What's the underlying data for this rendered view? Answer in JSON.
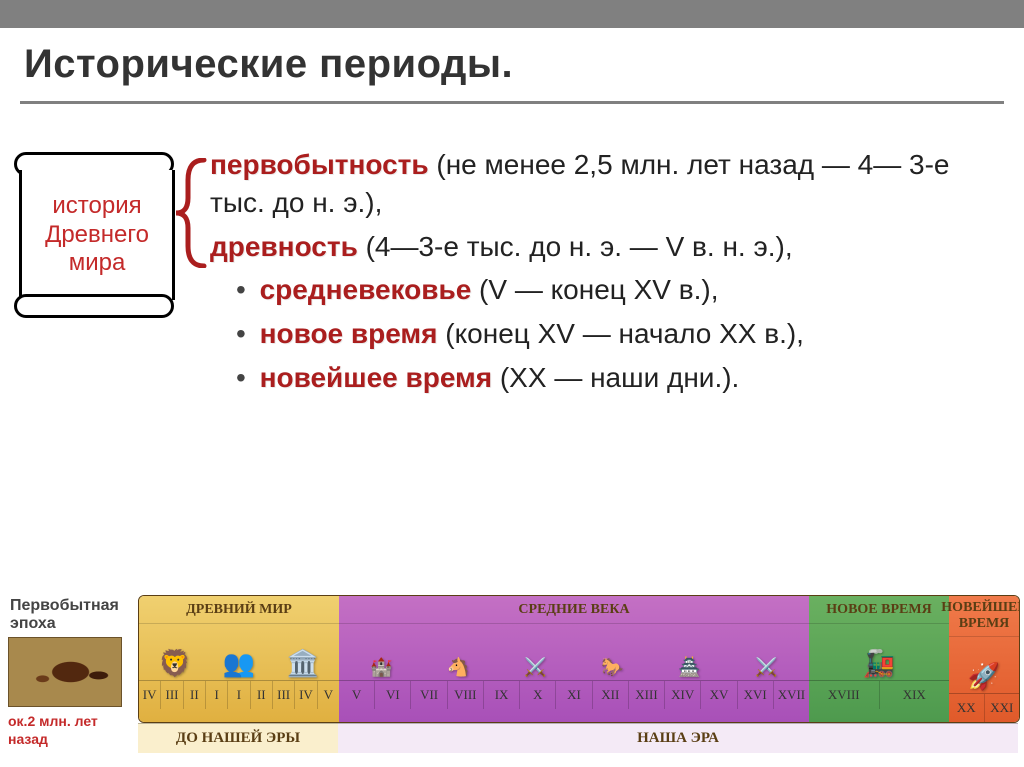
{
  "title": "Исторические периоды.",
  "scroll": {
    "line1": "история",
    "line2": "Древнего",
    "line3": "мира"
  },
  "periods": [
    {
      "term": "первобытность",
      "rest": " (не менее 2,5 млн. лет назад — 4— 3-е тыс. до н. э.),",
      "bracket": true
    },
    {
      "term": "древность",
      "rest": " (4—3-е тыс. до н. э. — V в. н. э.),",
      "bracket": true
    },
    {
      "term": "средневековье",
      "rest": " (V — конец XV в.),",
      "bullet": true
    },
    {
      "term": "новое время",
      "rest": " (конец XV — начало XX в.),",
      "bullet": true
    },
    {
      "term": "новейшее время",
      "rest": " (XX — наши дни.).",
      "bullet": true
    }
  ],
  "primitive": {
    "label": "Первобытная эпоха",
    "caption": "ок.2 млн. лет назад"
  },
  "timeline": {
    "eras": [
      {
        "name": "ДРЕВНИЙ МИР",
        "class": "e1",
        "ticks": [
          "IV",
          "III",
          "II",
          "I",
          "I",
          "II",
          "III",
          "IV",
          "V"
        ],
        "tick_w": 22,
        "icons": [
          "🦁",
          "👥",
          "🏛️"
        ]
      },
      {
        "name": "СРЕДНИЕ ВЕКА",
        "class": "e2",
        "ticks": [
          "V",
          "VI",
          "VII",
          "VIII",
          "IX",
          "X",
          "XI",
          "XII",
          "XIII",
          "XIV",
          "XV",
          "XVI",
          "XVII"
        ],
        "tick_w": 36,
        "icons": [
          "🏰",
          "🐴",
          "⚔️",
          "🐎",
          "🏯",
          "⚔️"
        ]
      },
      {
        "name": "НОВОЕ ВРЕМЯ",
        "class": "e3",
        "ticks": [
          "XVIII",
          "XIX"
        ],
        "tick_w": 70,
        "icons": [
          "🚂"
        ]
      },
      {
        "name": "НОВЕЙШЕЕ ВРЕМЯ",
        "class": "e4",
        "ticks": [
          "XX",
          "XXI"
        ],
        "tick_w": 35,
        "icons": [
          "🚀"
        ]
      }
    ],
    "footer_bc": "ДО НАШЕЙ ЭРЫ",
    "footer_ad": "НАША ЭРА"
  },
  "colors": {
    "accent_red": "#aa1e1e",
    "header_gray": "#808080"
  }
}
